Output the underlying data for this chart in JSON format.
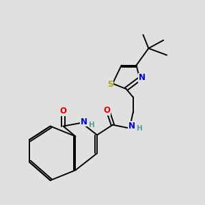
{
  "background_color": "#e0e0e0",
  "bond_color": "#000000",
  "atom_colors": {
    "N": "#0000cc",
    "O": "#dd0000",
    "S": "#aaaa00",
    "C": "#000000",
    "H": "#5a9a9a"
  }
}
